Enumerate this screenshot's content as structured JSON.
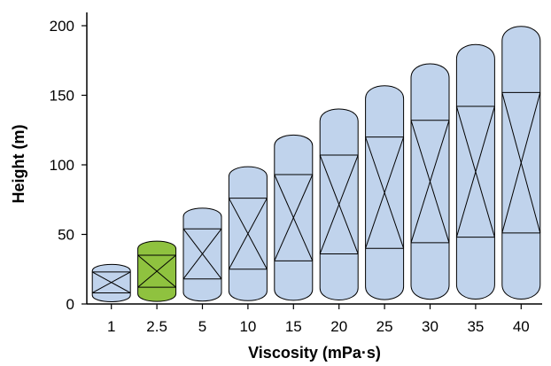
{
  "chart_data": {
    "type": "bar",
    "xlabel": "Viscosity (mPa·s)",
    "ylabel": "Height (m)",
    "ylim": [
      0,
      210
    ],
    "yticks": [
      0,
      50,
      100,
      150,
      200
    ],
    "categories": [
      "1",
      "2.5",
      "5",
      "10",
      "15",
      "20",
      "25",
      "30",
      "35",
      "40"
    ],
    "values": [
      30,
      47,
      71,
      101,
      124,
      143,
      160,
      176,
      190,
      203
    ],
    "bands": [
      {
        "lower": 8,
        "upper": 23
      },
      {
        "lower": 12,
        "upper": 35
      },
      {
        "lower": 18,
        "upper": 54
      },
      {
        "lower": 25,
        "upper": 76
      },
      {
        "lower": 31,
        "upper": 93
      },
      {
        "lower": 36,
        "upper": 107
      },
      {
        "lower": 40,
        "upper": 120
      },
      {
        "lower": 44,
        "upper": 132
      },
      {
        "lower": 48,
        "upper": 142
      },
      {
        "lower": 51,
        "upper": 152
      }
    ],
    "highlight_index": 1,
    "colors": {
      "default_fill": "#c0d3ec",
      "highlight_fill": "#8fc23f",
      "stroke": "#000000"
    },
    "grid": false
  }
}
